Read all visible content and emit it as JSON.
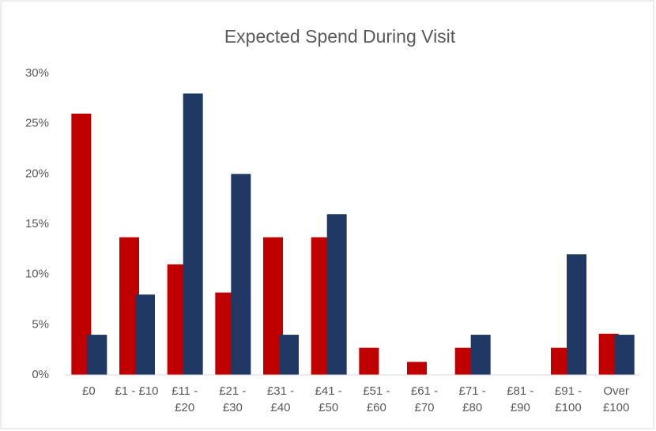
{
  "chart_data": {
    "type": "bar",
    "title": "Expected Spend During Visit",
    "categories": [
      "£0",
      "£1 - £10",
      "£11 - £20",
      "£21 - £30",
      "£31 - £40",
      "£41 - £50",
      "£51 - £60",
      "£61 - £70",
      "£71 - £80",
      "£81 - £90",
      "£91 - £100",
      "Over £100"
    ],
    "series": [
      {
        "color": "#c00000",
        "values": [
          26,
          13.7,
          11,
          8.2,
          13.7,
          13.7,
          2.7,
          1.3,
          2.7,
          0,
          2.7,
          4.1
        ]
      },
      {
        "color": "#1f3864",
        "values": [
          4,
          8,
          28,
          20,
          4,
          16,
          0,
          0,
          4,
          0,
          12,
          4
        ]
      }
    ],
    "ylim": [
      0,
      30
    ],
    "yticks": [
      {
        "value": 0,
        "label": "0%"
      },
      {
        "value": 5,
        "label": "5%"
      },
      {
        "value": 10,
        "label": "10%"
      },
      {
        "value": 15,
        "label": "15%"
      },
      {
        "value": 20,
        "label": "20%"
      },
      {
        "value": 25,
        "label": "25%"
      },
      {
        "value": 30,
        "label": "30%"
      }
    ],
    "grid": false
  }
}
